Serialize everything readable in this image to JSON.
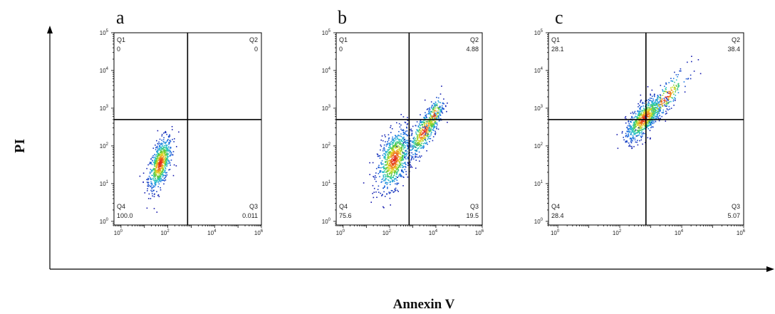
{
  "figure": {
    "y_axis_title": "PI",
    "x_axis_title": "Annexin V"
  },
  "chart_data": [
    {
      "type": "scatter",
      "panel_label": "a",
      "xscale": "log",
      "yscale": "log",
      "xlim": [
        0.5,
        1000000
      ],
      "ylim": [
        0.8,
        100000
      ],
      "x_ticks": [
        {
          "base": "10",
          "exp": "0"
        },
        {
          "base": "10",
          "exp": "2"
        },
        {
          "base": "10",
          "exp": "4"
        },
        {
          "base": "10",
          "exp": "6"
        }
      ],
      "y_ticks": [
        {
          "base": "10",
          "exp": "0"
        },
        {
          "base": "10",
          "exp": "1"
        },
        {
          "base": "10",
          "exp": "2"
        },
        {
          "base": "10",
          "exp": "3"
        },
        {
          "base": "10",
          "exp": "4"
        },
        {
          "base": "10",
          "exp": "5"
        }
      ],
      "gate_x": 700,
      "gate_y": 500,
      "quadrants": [
        {
          "name": "Q1",
          "value": "0"
        },
        {
          "name": "Q2",
          "value": "0"
        },
        {
          "name": "Q3",
          "value": "0.011"
        },
        {
          "name": "Q4",
          "value": "100.0"
        }
      ],
      "populations": [
        {
          "center_x": 45,
          "center_y": 35,
          "spread_lx": 0.25,
          "spread_ly": 0.35,
          "rho": 0.55,
          "count": 700
        }
      ]
    },
    {
      "type": "scatter",
      "panel_label": "b",
      "xscale": "log",
      "yscale": "log",
      "xlim": [
        0.5,
        1000000
      ],
      "ylim": [
        0.8,
        100000
      ],
      "x_ticks": [
        {
          "base": "10",
          "exp": "0"
        },
        {
          "base": "10",
          "exp": "2"
        },
        {
          "base": "10",
          "exp": "4"
        },
        {
          "base": "10",
          "exp": "6"
        }
      ],
      "y_ticks": [
        {
          "base": "10",
          "exp": "0"
        },
        {
          "base": "10",
          "exp": "1"
        },
        {
          "base": "10",
          "exp": "2"
        },
        {
          "base": "10",
          "exp": "3"
        },
        {
          "base": "10",
          "exp": "4"
        },
        {
          "base": "10",
          "exp": "5"
        }
      ],
      "gate_x": 700,
      "gate_y": 500,
      "quadrants": [
        {
          "name": "Q1",
          "value": "0"
        },
        {
          "name": "Q2",
          "value": "4.88"
        },
        {
          "name": "Q3",
          "value": "19.5"
        },
        {
          "name": "Q4",
          "value": "75.6"
        }
      ],
      "populations": [
        {
          "center_x": 150,
          "center_y": 45,
          "spread_lx": 0.35,
          "spread_ly": 0.4,
          "rho": 0.45,
          "count": 850
        },
        {
          "center_x": 3000,
          "center_y": 250,
          "spread_lx": 0.35,
          "spread_ly": 0.35,
          "rho": 0.75,
          "count": 450
        },
        {
          "center_x": 8000,
          "center_y": 650,
          "spread_lx": 0.2,
          "spread_ly": 0.25,
          "rho": 0.6,
          "count": 150
        }
      ]
    },
    {
      "type": "scatter",
      "panel_label": "c",
      "xscale": "log",
      "yscale": "log",
      "xlim": [
        0.5,
        1000000
      ],
      "ylim": [
        0.8,
        100000
      ],
      "x_ticks": [
        {
          "base": "10",
          "exp": "0"
        },
        {
          "base": "10",
          "exp": "2"
        },
        {
          "base": "10",
          "exp": "4"
        },
        {
          "base": "10",
          "exp": "6"
        }
      ],
      "y_ticks": [
        {
          "base": "10",
          "exp": "0"
        },
        {
          "base": "10",
          "exp": "1"
        },
        {
          "base": "10",
          "exp": "2"
        },
        {
          "base": "10",
          "exp": "3"
        },
        {
          "base": "10",
          "exp": "4"
        },
        {
          "base": "10",
          "exp": "5"
        }
      ],
      "gate_x": 700,
      "gate_y": 500,
      "quadrants": [
        {
          "name": "Q1",
          "value": "28.1"
        },
        {
          "name": "Q2",
          "value": "38.4"
        },
        {
          "name": "Q3",
          "value": "5.07"
        },
        {
          "name": "Q4",
          "value": "28.4"
        }
      ],
      "populations": [
        {
          "center_x": 600,
          "center_y": 550,
          "spread_lx": 0.3,
          "spread_ly": 0.3,
          "rho": 0.7,
          "count": 800
        },
        {
          "center_x": 3000,
          "center_y": 2000,
          "spread_lx": 0.35,
          "spread_ly": 0.35,
          "rho": 0.85,
          "count": 200
        }
      ]
    }
  ]
}
